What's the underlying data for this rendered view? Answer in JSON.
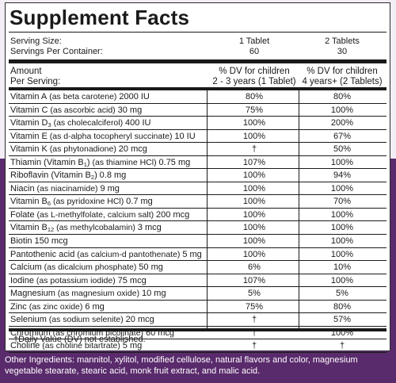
{
  "title": "Supplement Facts",
  "serving": {
    "size_label": "Serving Size:",
    "per_container_label": "Servings Per Container:",
    "col1_size": "1 Tablet",
    "col1_servings": "60",
    "col2_size": "2 Tablets",
    "col2_servings": "30"
  },
  "header": {
    "amount_line1": "Amount",
    "amount_line2": "Per Serving:",
    "col1_line1": "% DV for children",
    "col1_line2": "2 - 3 years  (1 Tablet)",
    "col2_line1": "% DV for children",
    "col2_line2": "4 years+  (2 Tablets)"
  },
  "rows": [
    {
      "name": "Vitamin A",
      "sub": "",
      "rest": "",
      "detail": " (as beta carotene) ",
      "amount": "2000 IU",
      "dv1": "80%",
      "dv2": "80%"
    },
    {
      "name": "Vitamin C",
      "sub": "",
      "rest": "",
      "detail": " (as ascorbic acid) ",
      "amount": "30 mg",
      "dv1": "75%",
      "dv2": "100%"
    },
    {
      "name": "Vitamin D",
      "sub": "3",
      "rest": "",
      "detail": " (as cholecalciferol) ",
      "amount": "400 IU",
      "dv1": "100%",
      "dv2": "200%"
    },
    {
      "name": "Vitamin E",
      "sub": "",
      "rest": "",
      "detail": " (as d-alpha tocopheryl succinate) ",
      "amount": "10 IU",
      "dv1": "100%",
      "dv2": "67%"
    },
    {
      "name": "Vitamin K",
      "sub": "",
      "rest": "",
      "detail": " (as phytonadione) ",
      "amount": "20 mcg",
      "dv1": "†",
      "dv2": "50%"
    },
    {
      "name": "Thiamin (Vitamin B",
      "sub": "1",
      "rest": ")",
      "detail": " (as thiamine HCl) ",
      "amount": "0.75 mg",
      "dv1": "107%",
      "dv2": "100%"
    },
    {
      "name": "Riboflavin (Vitamin B",
      "sub": "2",
      "rest": ")",
      "detail": " ",
      "amount": "0.8 mg",
      "dv1": "100%",
      "dv2": "94%"
    },
    {
      "name": "Niacin",
      "sub": "",
      "rest": "",
      "detail": " (as niacinamide) ",
      "amount": "9 mg",
      "dv1": "100%",
      "dv2": "100%"
    },
    {
      "name": "Vitamin B",
      "sub": "6",
      "rest": "",
      "detail": " (as pyridoxine HCl) ",
      "amount": "0.7 mg",
      "dv1": "100%",
      "dv2": "70%"
    },
    {
      "name": "Folate",
      "sub": "",
      "rest": "",
      "detail": " (as L-methylfolate, calcium salt) ",
      "amount": "200 mcg",
      "dv1": "100%",
      "dv2": "100%"
    },
    {
      "name": "Vitamin B",
      "sub": "12",
      "rest": "",
      "detail": "  (as methylcobalamin) ",
      "amount": "3 mcg",
      "dv1": "100%",
      "dv2": "100%"
    },
    {
      "name": "Biotin",
      "sub": "",
      "rest": "",
      "detail": " ",
      "amount": "150 mcg",
      "dv1": "100%",
      "dv2": "100%"
    },
    {
      "name": "Pantothenic acid",
      "sub": "",
      "rest": "",
      "detail": " (as calcium-d pantothenate) ",
      "amount": "5 mg",
      "dv1": "100%",
      "dv2": "100%"
    },
    {
      "name": "Calcium",
      "sub": "",
      "rest": "",
      "detail": " (as dicalcium phosphate) ",
      "amount": "50 mg",
      "dv1": "6%",
      "dv2": "10%"
    },
    {
      "name": "Iodine",
      "sub": "",
      "rest": "",
      "detail": " (as potassium iodide) ",
      "amount": "75 mcg",
      "dv1": "107%",
      "dv2": "100%"
    },
    {
      "name": "Magnesium",
      "sub": "",
      "rest": "",
      "detail": " (as magnesium oxide)  ",
      "amount": "10 mg",
      "dv1": "5%",
      "dv2": "5%"
    },
    {
      "name": "Zinc",
      "sub": "",
      "rest": "",
      "detail": " (as zinc oxide) ",
      "amount": "6 mg",
      "dv1": "75%",
      "dv2": "80%"
    },
    {
      "name": "Selenium",
      "sub": "",
      "rest": "",
      "detail": " (as sodium selenite) ",
      "amount": "20 mcg",
      "dv1": "†",
      "dv2": "57%"
    },
    {
      "name": "Chromium",
      "sub": "",
      "rest": "",
      "detail": " (as chromium picolinate) ",
      "amount": "60 mcg",
      "dv1": "†",
      "dv2": "100%"
    },
    {
      "name": "Choline",
      "sub": "",
      "rest": "",
      "detail": " (as choline bitartrate) ",
      "amount": "5 mg",
      "dv1": "†",
      "dv2": "†"
    }
  ],
  "footnote": "†Daily Value (DV) not established.",
  "other_ingredients": "Other Ingredients: mannitol, xylitol, modified cellulose, natural flavors and color, magnesium vegetable stearate, stearic acid, monk fruit extract, and malic acid.",
  "colors": {
    "background_top": "#f3eef6",
    "background_bottom": "#5a2b6c",
    "text": "#1a1a1a"
  }
}
